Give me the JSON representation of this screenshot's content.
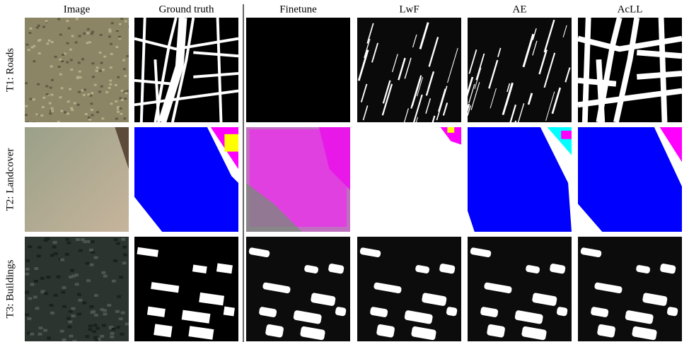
{
  "columns": [
    "Image",
    "Ground truth",
    "Finetune",
    "LwF",
    "AE",
    "AcLL"
  ],
  "rows": [
    "T1: Roads",
    "T2: Landcover",
    "T3: Buildings"
  ]
}
